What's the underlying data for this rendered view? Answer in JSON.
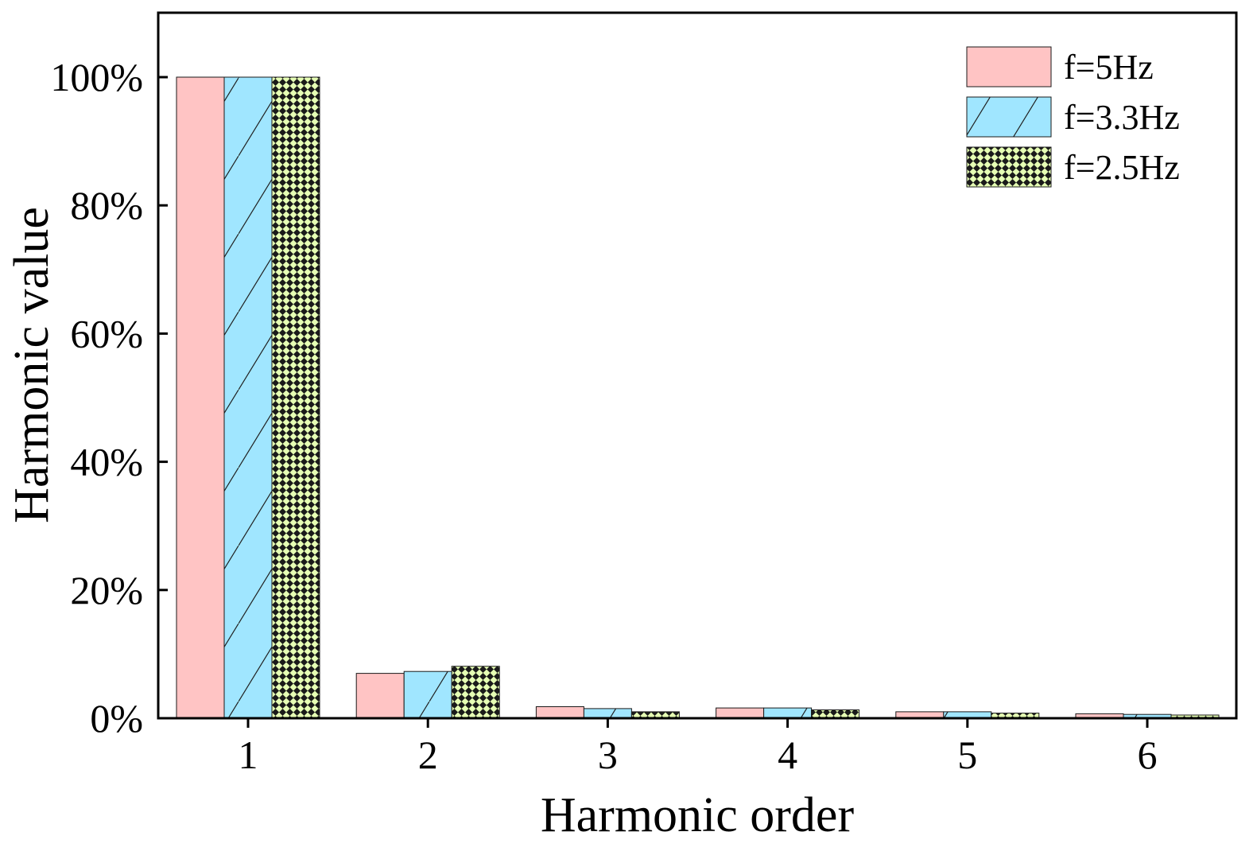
{
  "chart_data": {
    "type": "bar",
    "xlabel": "Harmonic order",
    "ylabel": "Harmonic value",
    "categories": [
      "1",
      "2",
      "3",
      "4",
      "5",
      "6"
    ],
    "series": [
      {
        "name": "f=5Hz",
        "values": [
          100,
          7,
          1.8,
          1.6,
          1.0,
          0.7
        ],
        "color": "#ffc4c4",
        "pattern": "solid"
      },
      {
        "name": "f=3.3Hz",
        "values": [
          100,
          7.3,
          1.5,
          1.6,
          1.0,
          0.6
        ],
        "color": "#a0e6ff",
        "pattern": "diagonal"
      },
      {
        "name": "f=2.5Hz",
        "values": [
          100,
          8.1,
          1.0,
          1.3,
          0.8,
          0.5
        ],
        "color": "#e6ffb4",
        "pattern": "checker"
      }
    ],
    "ylim": [
      0,
      100
    ],
    "yticks": [
      0,
      20,
      40,
      60,
      80,
      100
    ],
    "ytick_labels": [
      "0%",
      "20%",
      "40%",
      "60%",
      "80%",
      "100%"
    ],
    "grid": false,
    "legend_position": "top-right"
  }
}
